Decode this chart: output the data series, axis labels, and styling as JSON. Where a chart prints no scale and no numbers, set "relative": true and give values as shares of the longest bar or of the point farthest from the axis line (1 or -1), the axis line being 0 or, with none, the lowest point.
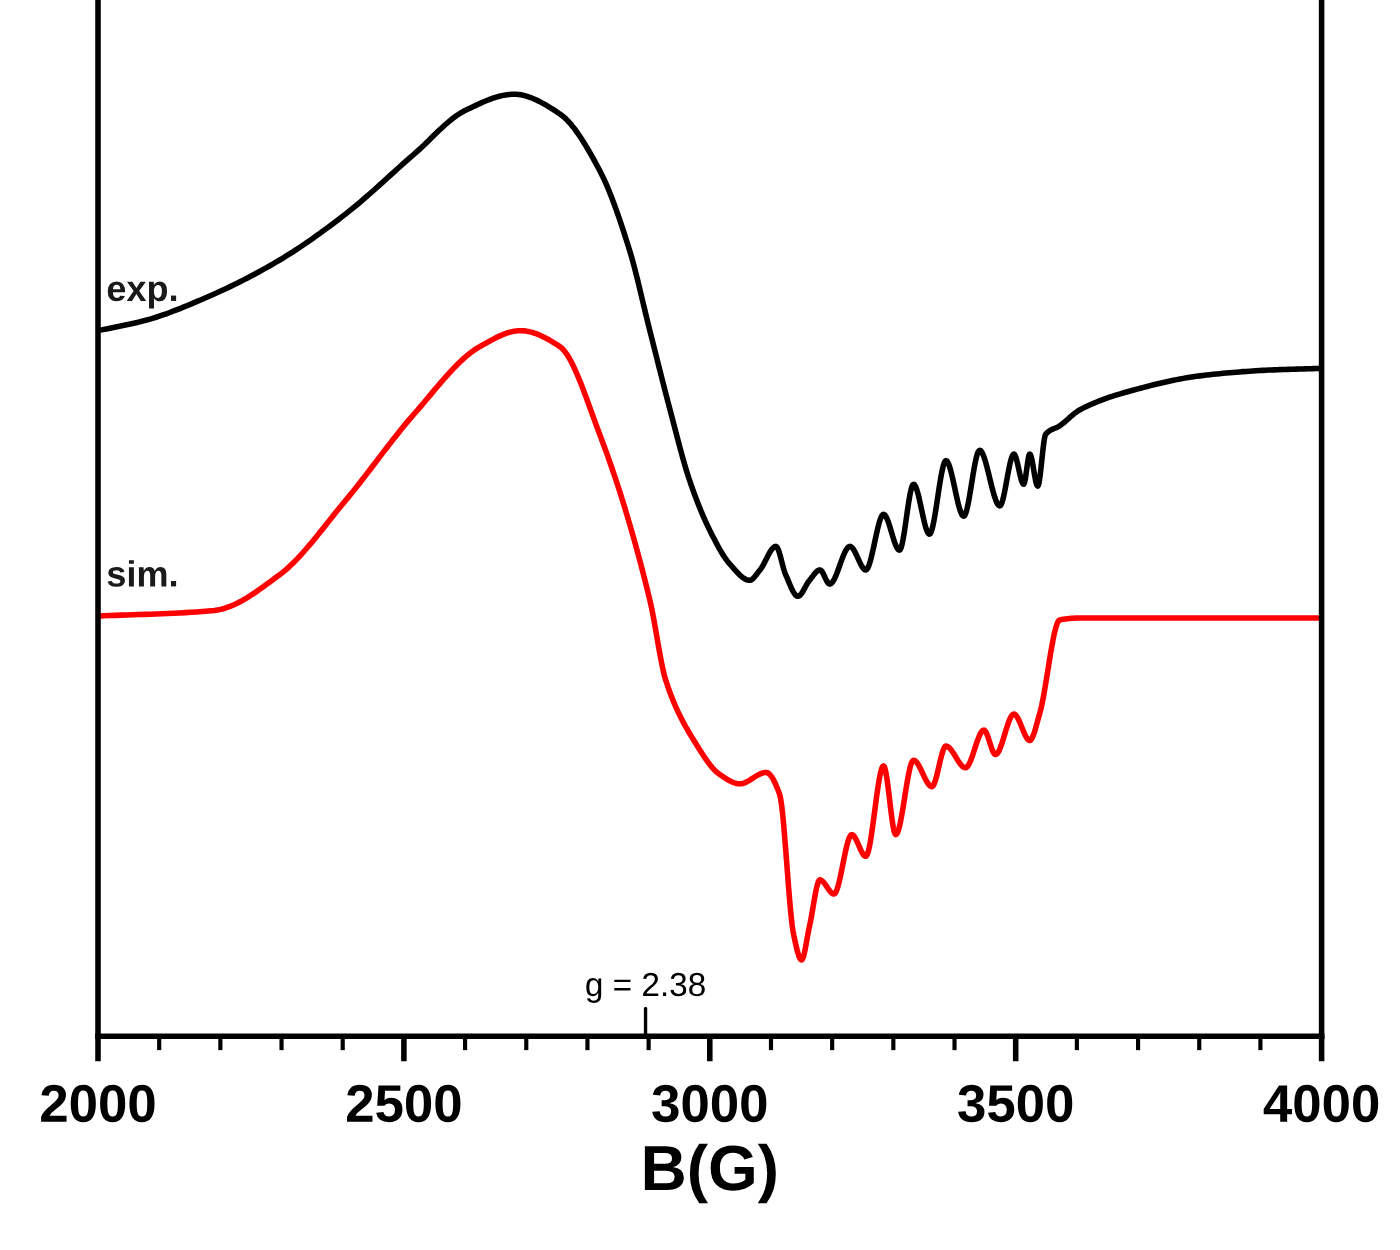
{
  "chart_data": {
    "type": "line",
    "relative": true,
    "xlabel": "B(G)",
    "xlim": [
      2000,
      4000
    ],
    "xticks": [
      2000,
      2500,
      3000,
      3500,
      4000
    ],
    "grid": false,
    "legend": false,
    "marker": "none",
    "line_style": "solid",
    "annotations": [
      "g = 2.38"
    ],
    "series": [
      {
        "name": "exp.",
        "color": "#000000",
        "x": [
          2000,
          2078,
          2190,
          2297,
          2405,
          2516,
          2601,
          2680,
          2755,
          2820,
          2869,
          2902,
          2935,
          2967,
          3000,
          3033,
          3065,
          3082,
          3108,
          3124,
          3144,
          3163,
          3180,
          3196,
          3229,
          3255,
          3284,
          3310,
          3333,
          3359,
          3386,
          3415,
          3441,
          3474,
          3497,
          3513,
          3523,
          3536,
          3549,
          3572,
          3605,
          3693,
          3801,
          3909,
          4000
        ],
        "values": [
          0.749,
          0.76,
          0.788,
          0.824,
          0.873,
          0.936,
          0.983,
          1.0,
          0.979,
          0.919,
          0.834,
          0.749,
          0.665,
          0.59,
          0.537,
          0.501,
          0.484,
          0.495,
          0.52,
          0.49,
          0.467,
          0.484,
          0.495,
          0.48,
          0.52,
          0.495,
          0.554,
          0.516,
          0.586,
          0.533,
          0.611,
          0.552,
          0.622,
          0.563,
          0.618,
          0.586,
          0.618,
          0.584,
          0.639,
          0.648,
          0.665,
          0.686,
          0.701,
          0.707,
          0.709
        ]
      },
      {
        "name": "sim.",
        "color": "#ff0000",
        "x": [
          2000,
          2190,
          2297,
          2405,
          2516,
          2624,
          2690,
          2755,
          2820,
          2902,
          2928,
          2974,
          3016,
          3049,
          3092,
          3114,
          3137,
          3150,
          3163,
          3180,
          3203,
          3232,
          3255,
          3284,
          3304,
          3333,
          3363,
          3386,
          3418,
          3448,
          3467,
          3497,
          3523,
          3539,
          3572,
          3605,
          4000
        ],
        "values": [
          0.446,
          0.452,
          0.49,
          0.569,
          0.66,
          0.732,
          0.749,
          0.732,
          0.639,
          0.463,
          0.378,
          0.314,
          0.278,
          0.268,
          0.28,
          0.257,
          0.108,
          0.081,
          0.117,
          0.166,
          0.151,
          0.214,
          0.191,
          0.287,
          0.214,
          0.293,
          0.265,
          0.308,
          0.285,
          0.325,
          0.299,
          0.342,
          0.314,
          0.342,
          0.442,
          0.444,
          0.444
        ]
      }
    ]
  }
}
